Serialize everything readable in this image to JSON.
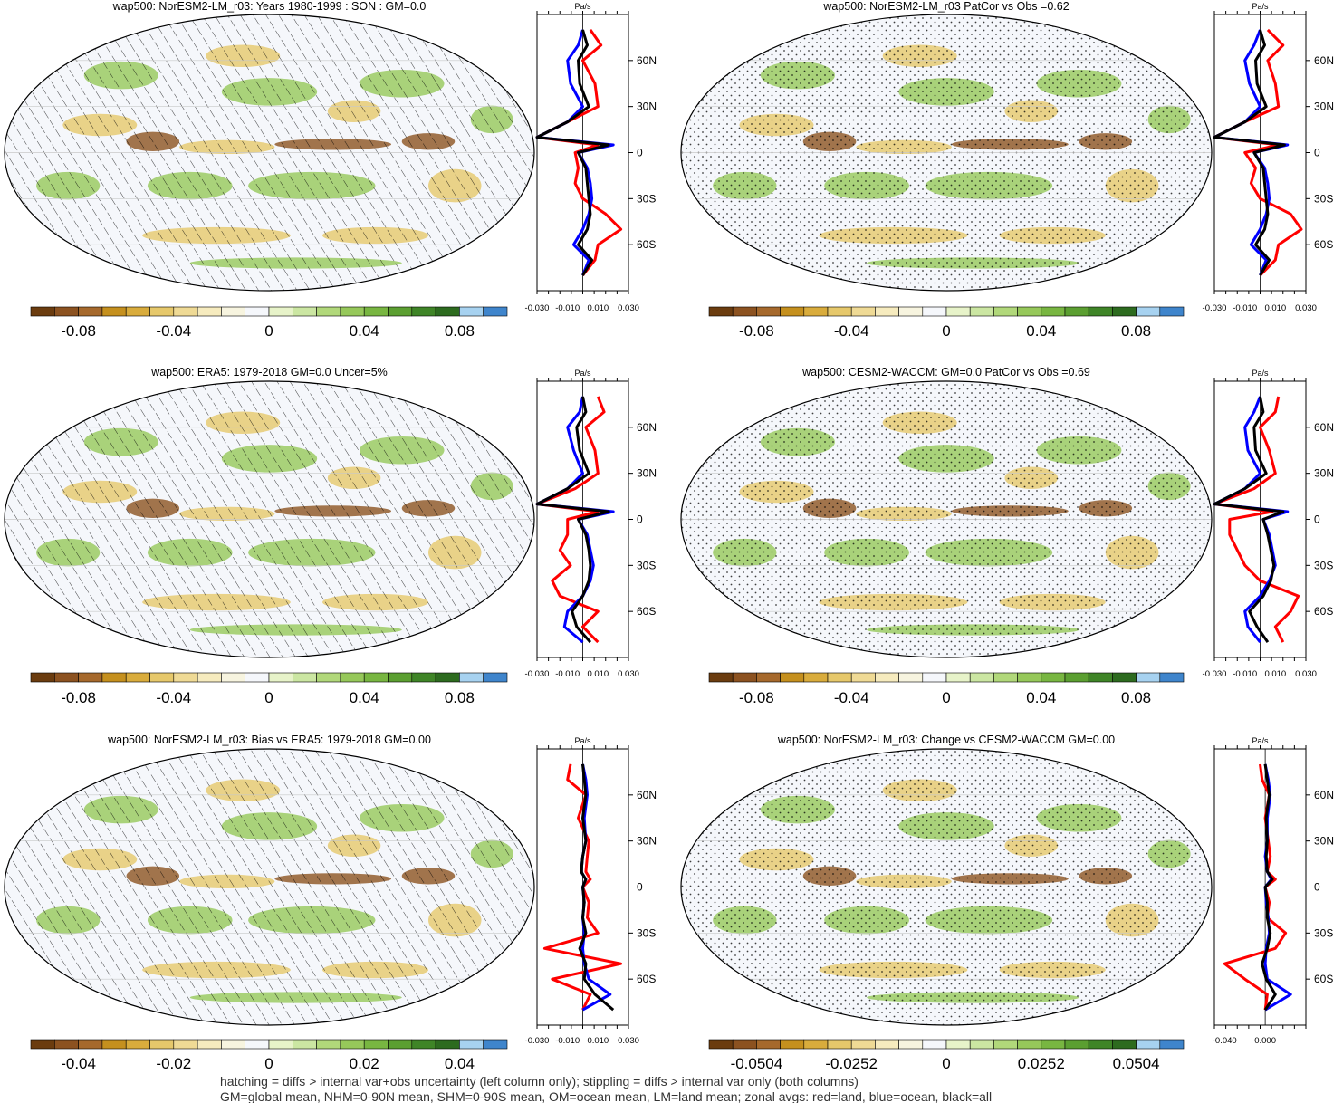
{
  "chart_data": [
    {
      "type": "heatmap",
      "title": "wap500: NorESM2-LM_r03: Years 1980-1999 : SON : GM=0.0",
      "colorbar_ticks": [
        "-0.08",
        "-0.04",
        "0",
        "0.04",
        "0.08"
      ],
      "colorbar_range": [
        -0.1,
        0.1
      ],
      "overlay": "hatching",
      "zonal_profile": {
        "unit": "Pa/s",
        "xlim": [
          -0.03,
          0.03
        ],
        "x_tick_labels": [
          "-0.030",
          "-0.010",
          "0.010",
          "0.030"
        ],
        "lat_tick_labels": [
          "60N",
          "30N",
          "0",
          "30S",
          "60S"
        ],
        "series": [
          {
            "color": "#ff0000",
            "lat": [
              80,
              70,
              60,
              45,
              30,
              20,
              10,
              5,
              0,
              -10,
              -20,
              -30,
              -40,
              -50,
              -60,
              -70,
              -80
            ],
            "values": [
              0.005,
              0.012,
              0.0,
              0.008,
              0.01,
              -0.01,
              -0.03,
              0.01,
              -0.005,
              -0.003,
              -0.005,
              0.0,
              0.015,
              0.025,
              0.01,
              0.008,
              0.0
            ]
          },
          {
            "color": "#0000ff",
            "lat": [
              80,
              70,
              60,
              45,
              30,
              20,
              10,
              5,
              0,
              -10,
              -20,
              -30,
              -40,
              -50,
              -60,
              -70,
              -80
            ],
            "values": [
              0.0,
              -0.003,
              -0.01,
              -0.008,
              0.0,
              -0.01,
              -0.03,
              0.02,
              -0.003,
              0.003,
              0.005,
              0.006,
              0.004,
              0.0,
              -0.006,
              0.004,
              0.0
            ]
          },
          {
            "color": "#000000",
            "lat": [
              80,
              70,
              60,
              45,
              30,
              20,
              10,
              5,
              0,
              -10,
              -20,
              -30,
              -40,
              -50,
              -60,
              -70,
              -80
            ],
            "values": [
              0.0,
              0.003,
              -0.003,
              -0.002,
              0.004,
              -0.01,
              -0.03,
              0.017,
              -0.003,
              0.002,
              0.003,
              0.004,
              0.005,
              0.003,
              -0.003,
              0.006,
              0.0
            ]
          }
        ]
      }
    },
    {
      "type": "heatmap",
      "title": "wap500: NorESM2-LM_r03 PatCor vs Obs =0.62",
      "colorbar_ticks": [
        "-0.08",
        "-0.04",
        "0",
        "0.04",
        "0.08"
      ],
      "colorbar_range": [
        -0.1,
        0.1
      ],
      "overlay": "stippling",
      "zonal_profile": {
        "unit": "Pa/s",
        "xlim": [
          -0.03,
          0.03
        ],
        "x_tick_labels": [
          "-0.030",
          "-0.010",
          "0.010",
          "0.030"
        ],
        "lat_tick_labels": [
          "60N",
          "30N",
          "0",
          "30S",
          "60S"
        ],
        "series": [
          {
            "color": "#ff0000",
            "lat": [
              80,
              70,
              60,
              45,
              30,
              20,
              10,
              5,
              0,
              -10,
              -20,
              -30,
              -40,
              -50,
              -60,
              -70,
              -80
            ],
            "values": [
              0.005,
              0.015,
              0.005,
              0.01,
              0.012,
              -0.01,
              -0.03,
              0.012,
              -0.01,
              -0.003,
              -0.006,
              0.0,
              0.02,
              0.027,
              0.012,
              0.01,
              0.0
            ]
          },
          {
            "color": "#0000ff",
            "lat": [
              80,
              70,
              60,
              45,
              30,
              20,
              10,
              5,
              0,
              -10,
              -20,
              -30,
              -40,
              -50,
              -60,
              -70,
              -80
            ],
            "values": [
              0.0,
              -0.004,
              -0.01,
              -0.007,
              0.0,
              -0.01,
              -0.03,
              0.018,
              -0.004,
              0.003,
              0.005,
              0.006,
              0.004,
              0.0,
              -0.006,
              0.004,
              0.0
            ]
          },
          {
            "color": "#000000",
            "lat": [
              80,
              70,
              60,
              45,
              30,
              20,
              10,
              5,
              0,
              -10,
              -20,
              -30,
              -40,
              -50,
              -60,
              -70,
              -80
            ],
            "values": [
              0.0,
              0.003,
              -0.003,
              -0.002,
              0.004,
              -0.01,
              -0.03,
              0.016,
              -0.004,
              0.002,
              0.003,
              0.004,
              0.005,
              0.003,
              -0.003,
              0.006,
              0.0
            ]
          }
        ]
      }
    },
    {
      "type": "heatmap",
      "title": "wap500: ERA5: 1979-2018 GM=0.0 Uncer=5%",
      "colorbar_ticks": [
        "-0.08",
        "-0.04",
        "0",
        "0.04",
        "0.08"
      ],
      "colorbar_range": [
        -0.1,
        0.1
      ],
      "overlay": "hatching",
      "zonal_profile": {
        "unit": "Pa/s",
        "xlim": [
          -0.03,
          0.03
        ],
        "x_tick_labels": [
          "-0.030",
          "-0.010",
          "0.010",
          "0.030"
        ],
        "lat_tick_labels": [
          "60N",
          "30N",
          "0",
          "30S",
          "60S"
        ],
        "series": [
          {
            "color": "#ff0000",
            "lat": [
              80,
              70,
              60,
              45,
              30,
              20,
              10,
              5,
              0,
              -10,
              -20,
              -30,
              -40,
              -50,
              -60,
              -70,
              -80
            ],
            "values": [
              0.01,
              0.014,
              0.002,
              0.008,
              0.01,
              -0.005,
              -0.03,
              0.01,
              -0.01,
              -0.01,
              -0.015,
              -0.008,
              -0.02,
              -0.015,
              0.01,
              0.0,
              0.01
            ]
          },
          {
            "color": "#0000ff",
            "lat": [
              80,
              70,
              60,
              45,
              30,
              20,
              10,
              5,
              0,
              -10,
              -20,
              -30,
              -40,
              -50,
              -60,
              -70,
              -80
            ],
            "values": [
              0.0,
              -0.002,
              -0.01,
              -0.006,
              0.0,
              -0.01,
              -0.03,
              0.02,
              -0.003,
              0.003,
              0.005,
              0.007,
              0.005,
              0.0,
              -0.01,
              -0.012,
              0.0
            ]
          },
          {
            "color": "#000000",
            "lat": [
              80,
              70,
              60,
              45,
              30,
              20,
              10,
              5,
              0,
              -10,
              -20,
              -30,
              -40,
              -50,
              -60,
              -70,
              -80
            ],
            "values": [
              0.0,
              0.002,
              -0.004,
              -0.002,
              0.004,
              -0.01,
              -0.03,
              0.017,
              -0.003,
              0.002,
              0.004,
              0.005,
              0.004,
              0.0,
              -0.007,
              -0.004,
              0.005
            ]
          }
        ]
      }
    },
    {
      "type": "heatmap",
      "title": "wap500: CESM2-WACCM: GM=0.0 PatCor vs Obs =0.69",
      "colorbar_ticks": [
        "-0.08",
        "-0.04",
        "0",
        "0.04",
        "0.08"
      ],
      "colorbar_range": [
        -0.1,
        0.1
      ],
      "overlay": "stippling",
      "zonal_profile": {
        "unit": "Pa/s",
        "xlim": [
          -0.03,
          0.03
        ],
        "x_tick_labels": [
          "-0.030",
          "-0.010",
          "0.010",
          "0.030"
        ],
        "lat_tick_labels": [
          "60N",
          "30N",
          "0",
          "30S",
          "60S"
        ],
        "series": [
          {
            "color": "#ff0000",
            "lat": [
              80,
              70,
              60,
              45,
              30,
              20,
              10,
              5,
              0,
              -10,
              -20,
              -30,
              -40,
              -50,
              -60,
              -70,
              -80
            ],
            "values": [
              0.012,
              0.01,
              0.0,
              0.006,
              0.01,
              -0.004,
              -0.03,
              0.008,
              -0.02,
              -0.02,
              -0.015,
              -0.01,
              0.0,
              0.025,
              0.02,
              0.01,
              0.015
            ]
          },
          {
            "color": "#0000ff",
            "lat": [
              80,
              70,
              60,
              45,
              30,
              20,
              10,
              5,
              0,
              -10,
              -20,
              -30,
              -40,
              -50,
              -60,
              -70,
              -80
            ],
            "values": [
              0.0,
              -0.004,
              -0.01,
              -0.008,
              0.0,
              -0.01,
              -0.03,
              0.018,
              0.002,
              0.006,
              0.008,
              0.01,
              0.006,
              0.0,
              -0.01,
              -0.008,
              0.0
            ]
          },
          {
            "color": "#000000",
            "lat": [
              80,
              70,
              60,
              45,
              30,
              20,
              10,
              5,
              0,
              -10,
              -20,
              -30,
              -40,
              -50,
              -60,
              -70,
              -80
            ],
            "values": [
              0.0,
              0.002,
              -0.004,
              -0.003,
              0.004,
              -0.01,
              -0.03,
              0.015,
              0.002,
              0.005,
              0.007,
              0.009,
              0.007,
              0.002,
              -0.007,
              -0.002,
              0.005
            ]
          }
        ]
      }
    },
    {
      "type": "heatmap",
      "title": "wap500: NorESM2-LM_r03: Bias vs ERA5: 1979-2018  GM=0.00",
      "colorbar_ticks": [
        "-0.04",
        "-0.02",
        "0",
        "0.02",
        "0.04"
      ],
      "colorbar_range": [
        -0.05,
        0.05
      ],
      "overlay": "hatching",
      "zonal_profile": {
        "unit": "Pa/s",
        "xlim": [
          -0.03,
          0.03
        ],
        "x_tick_labels": [
          "-0.030",
          "-0.010",
          "0.010",
          "0.030"
        ],
        "lat_tick_labels": [
          "60N",
          "30N",
          "0",
          "30S",
          "60S"
        ],
        "series": [
          {
            "color": "#ff0000",
            "lat": [
              80,
              70,
              60,
              45,
              30,
              20,
              10,
              5,
              0,
              -10,
              -20,
              -30,
              -40,
              -50,
              -60,
              -70,
              -80
            ],
            "values": [
              -0.008,
              -0.01,
              0.002,
              -0.003,
              0.004,
              0.003,
              0.002,
              0.005,
              0.0,
              0.004,
              0.003,
              0.01,
              -0.025,
              0.025,
              -0.02,
              0.005,
              0.0
            ]
          },
          {
            "color": "#0000ff",
            "lat": [
              80,
              70,
              60,
              45,
              30,
              20,
              10,
              5,
              0,
              -10,
              -20,
              -30,
              -40,
              -50,
              -60,
              -70,
              -80
            ],
            "values": [
              0.0,
              0.002,
              0.003,
              0.001,
              0.002,
              0.0,
              -0.001,
              0.002,
              0.0,
              0.001,
              0.0,
              0.001,
              0.0,
              0.001,
              0.004,
              0.018,
              0.0
            ]
          },
          {
            "color": "#000000",
            "lat": [
              80,
              70,
              60,
              45,
              30,
              20,
              10,
              5,
              0,
              -10,
              -20,
              -30,
              -40,
              -50,
              -60,
              -70,
              -80
            ],
            "values": [
              0.0,
              0.001,
              0.002,
              0.0,
              0.002,
              0.0,
              -0.001,
              0.002,
              0.0,
              0.001,
              0.0,
              0.002,
              -0.002,
              0.002,
              0.001,
              0.008,
              0.02
            ]
          }
        ]
      }
    },
    {
      "type": "heatmap",
      "title": "wap500: NorESM2-LM_r03: Change vs CESM2-WACCM GM=0.00",
      "colorbar_ticks": [
        "-0.0504",
        "-0.0252",
        "0",
        "0.0252",
        "0.0504"
      ],
      "colorbar_range": [
        -0.063,
        0.063
      ],
      "overlay": "stippling",
      "zonal_profile": {
        "unit": "Pa/s",
        "xlim": [
          -0.05,
          0.04
        ],
        "x_tick_labels": [
          "-0.040",
          "0.000"
        ],
        "lat_tick_labels": [
          "60N",
          "30N",
          "0",
          "30S",
          "60S"
        ],
        "series": [
          {
            "color": "#ff0000",
            "lat": [
              80,
              70,
              60,
              45,
              30,
              20,
              10,
              5,
              0,
              -10,
              -20,
              -30,
              -40,
              -50,
              -60,
              -70,
              -80
            ],
            "values": [
              -0.005,
              -0.003,
              0.004,
              0.0,
              0.003,
              0.005,
              0.002,
              0.01,
              0.0,
              0.004,
              0.002,
              0.02,
              0.01,
              -0.04,
              -0.02,
              0.002,
              0.0
            ]
          },
          {
            "color": "#0000ff",
            "lat": [
              80,
              70,
              60,
              45,
              30,
              20,
              10,
              5,
              0,
              -10,
              -20,
              -30,
              -40,
              -50,
              -60,
              -70,
              -80
            ],
            "values": [
              0.0,
              0.003,
              0.005,
              0.002,
              0.002,
              0.0,
              0.002,
              0.006,
              0.0,
              0.001,
              0.003,
              0.004,
              0.001,
              0.0,
              0.002,
              0.025,
              0.0
            ]
          },
          {
            "color": "#000000",
            "lat": [
              80,
              70,
              60,
              45,
              30,
              20,
              10,
              5,
              0,
              -10,
              -20,
              -30,
              -40,
              -50,
              -60,
              -70,
              -80
            ],
            "values": [
              0.0,
              0.002,
              0.004,
              0.001,
              0.002,
              0.001,
              0.002,
              0.007,
              0.0,
              0.002,
              0.002,
              0.005,
              0.002,
              -0.003,
              0.001,
              0.01,
              0.0
            ]
          }
        ]
      }
    }
  ],
  "colorscale": [
    "#6b3c0f",
    "#8c5220",
    "#a6692c",
    "#c5901e",
    "#d9ac3c",
    "#e6c86b",
    "#efda95",
    "#f6ebbe",
    "#f7f4df",
    "#f5f7fb",
    "#e7f3c9",
    "#cbe6a2",
    "#b1d87a",
    "#96c85a",
    "#78b641",
    "#5b9f31",
    "#3f8527",
    "#2d6b1f",
    "#a7d2f0",
    "#3f85cc"
  ],
  "footer": {
    "line1": "hatching = diffs > internal var+obs uncertainty (left column only); stippling = diffs > internal var only (both columns)",
    "line2": "GM=global mean, NHM=0-90N mean, SHM=0-90S mean, OM=ocean mean, LM=land mean; zonal avgs: red=land, blue=ocean, black=all"
  }
}
